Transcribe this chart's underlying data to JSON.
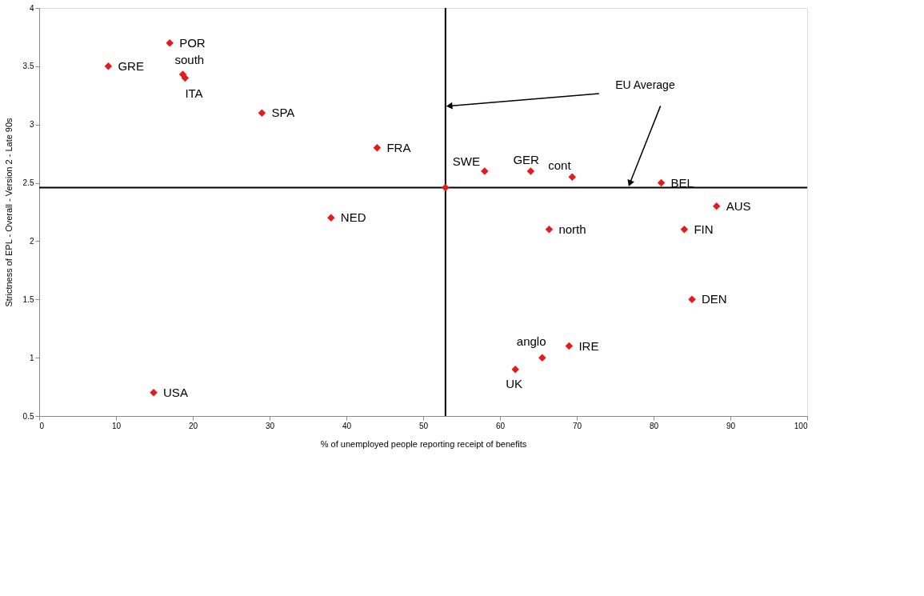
{
  "chart_data": {
    "type": "scatter",
    "xlabel": "% of unemployed people reporting receipt of benefits",
    "ylabel": "Strictness of EPL - Overall - Version 2 - Late 90s",
    "x": [
      9,
      17,
      18.7,
      19,
      29,
      44,
      38,
      52.9,
      58,
      64,
      69.4,
      81,
      88.2,
      84,
      66.4,
      85,
      69,
      65.5,
      62,
      14.9
    ],
    "series": [
      {
        "color": "#e41a1c",
        "values": [
          3.5,
          3.7,
          3.43,
          3.4,
          3.1,
          2.8,
          2.2,
          2.46,
          2.6,
          2.6,
          2.55,
          2.5,
          2.3,
          2.1,
          2.1,
          1.5,
          1.1,
          1.0,
          0.9,
          0.7
        ]
      }
    ],
    "xlim": [
      0,
      100
    ],
    "xticks": [
      0,
      10,
      20,
      30,
      40,
      50,
      60,
      70,
      80,
      90,
      100
    ],
    "ylim": [
      0.5,
      4
    ],
    "yticks": [
      0.5,
      1,
      1.5,
      2,
      2.5,
      3,
      3.5,
      4
    ],
    "marker": "diamond",
    "grid": false,
    "ref_lines": [
      {
        "axis": "x",
        "value": 52.9,
        "color": "#000000"
      },
      {
        "axis": "y",
        "value": 2.46,
        "color": "#000000"
      }
    ],
    "annotations": [
      {
        "text": "GRE",
        "x": 9,
        "y": 3.5
      },
      {
        "text": "POR",
        "x": 17,
        "y": 3.7
      },
      {
        "text": "south",
        "x": 18.7,
        "y": 3.43
      },
      {
        "text": "ITA",
        "x": 19,
        "y": 3.4
      },
      {
        "text": "SPA",
        "x": 29,
        "y": 3.1
      },
      {
        "text": "FRA",
        "x": 44,
        "y": 2.8
      },
      {
        "text": "NED",
        "x": 38,
        "y": 2.2
      },
      {
        "text": "SWE",
        "x": 58,
        "y": 2.6
      },
      {
        "text": "GER",
        "x": 64,
        "y": 2.6
      },
      {
        "text": "cont",
        "x": 69.4,
        "y": 2.55
      },
      {
        "text": "BEL",
        "x": 81,
        "y": 2.5
      },
      {
        "text": "AUS",
        "x": 88.2,
        "y": 2.3
      },
      {
        "text": "FIN",
        "x": 84,
        "y": 2.1
      },
      {
        "text": "north",
        "x": 66.4,
        "y": 2.1
      },
      {
        "text": "DEN",
        "x": 85,
        "y": 1.5
      },
      {
        "text": "IRE",
        "x": 69,
        "y": 1.1
      },
      {
        "text": "anglo",
        "x": 65.5,
        "y": 1.0
      },
      {
        "text": "UK",
        "x": 62,
        "y": 0.9
      },
      {
        "text": "USA",
        "x": 14.9,
        "y": 0.7
      },
      "EU Average"
    ]
  }
}
